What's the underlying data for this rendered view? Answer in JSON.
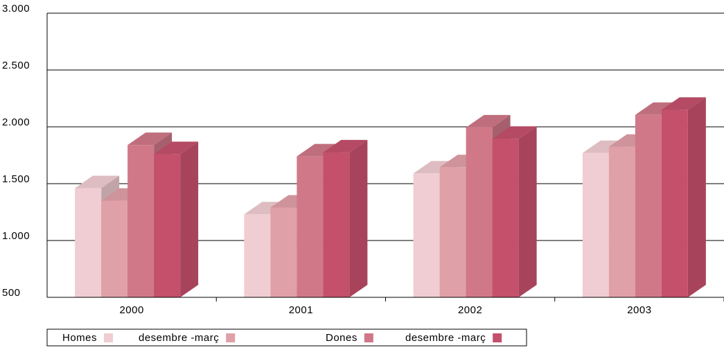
{
  "chart_data": {
    "type": "bar3d",
    "categories": [
      "2000",
      "2001",
      "2002",
      "2003"
    ],
    "series": [
      {
        "name": "Homes",
        "color": "#f0cdd2",
        "values": [
          1460,
          1230,
          1590,
          1770
        ]
      },
      {
        "name": "desembre -març",
        "color": "#e0a0a8",
        "values": [
          1350,
          1290,
          1645,
          1825
        ]
      },
      {
        "name": "Dones",
        "color": "#d07888",
        "values": [
          1840,
          1740,
          1995,
          2105
        ]
      },
      {
        "name": "desembre -març",
        "color": "#c4506c",
        "values": [
          1760,
          1775,
          1895,
          2150
        ]
      }
    ],
    "ylim": [
      500,
      3000
    ],
    "yticks": [
      {
        "value": 500,
        "label": "500"
      },
      {
        "value": 1000,
        "label": "1.000"
      },
      {
        "value": 1500,
        "label": "1.500"
      },
      {
        "value": 2000,
        "label": "2.000"
      },
      {
        "value": 2500,
        "label": "2.500"
      },
      {
        "value": 3000,
        "label": "3.000"
      }
    ],
    "grid": true
  }
}
